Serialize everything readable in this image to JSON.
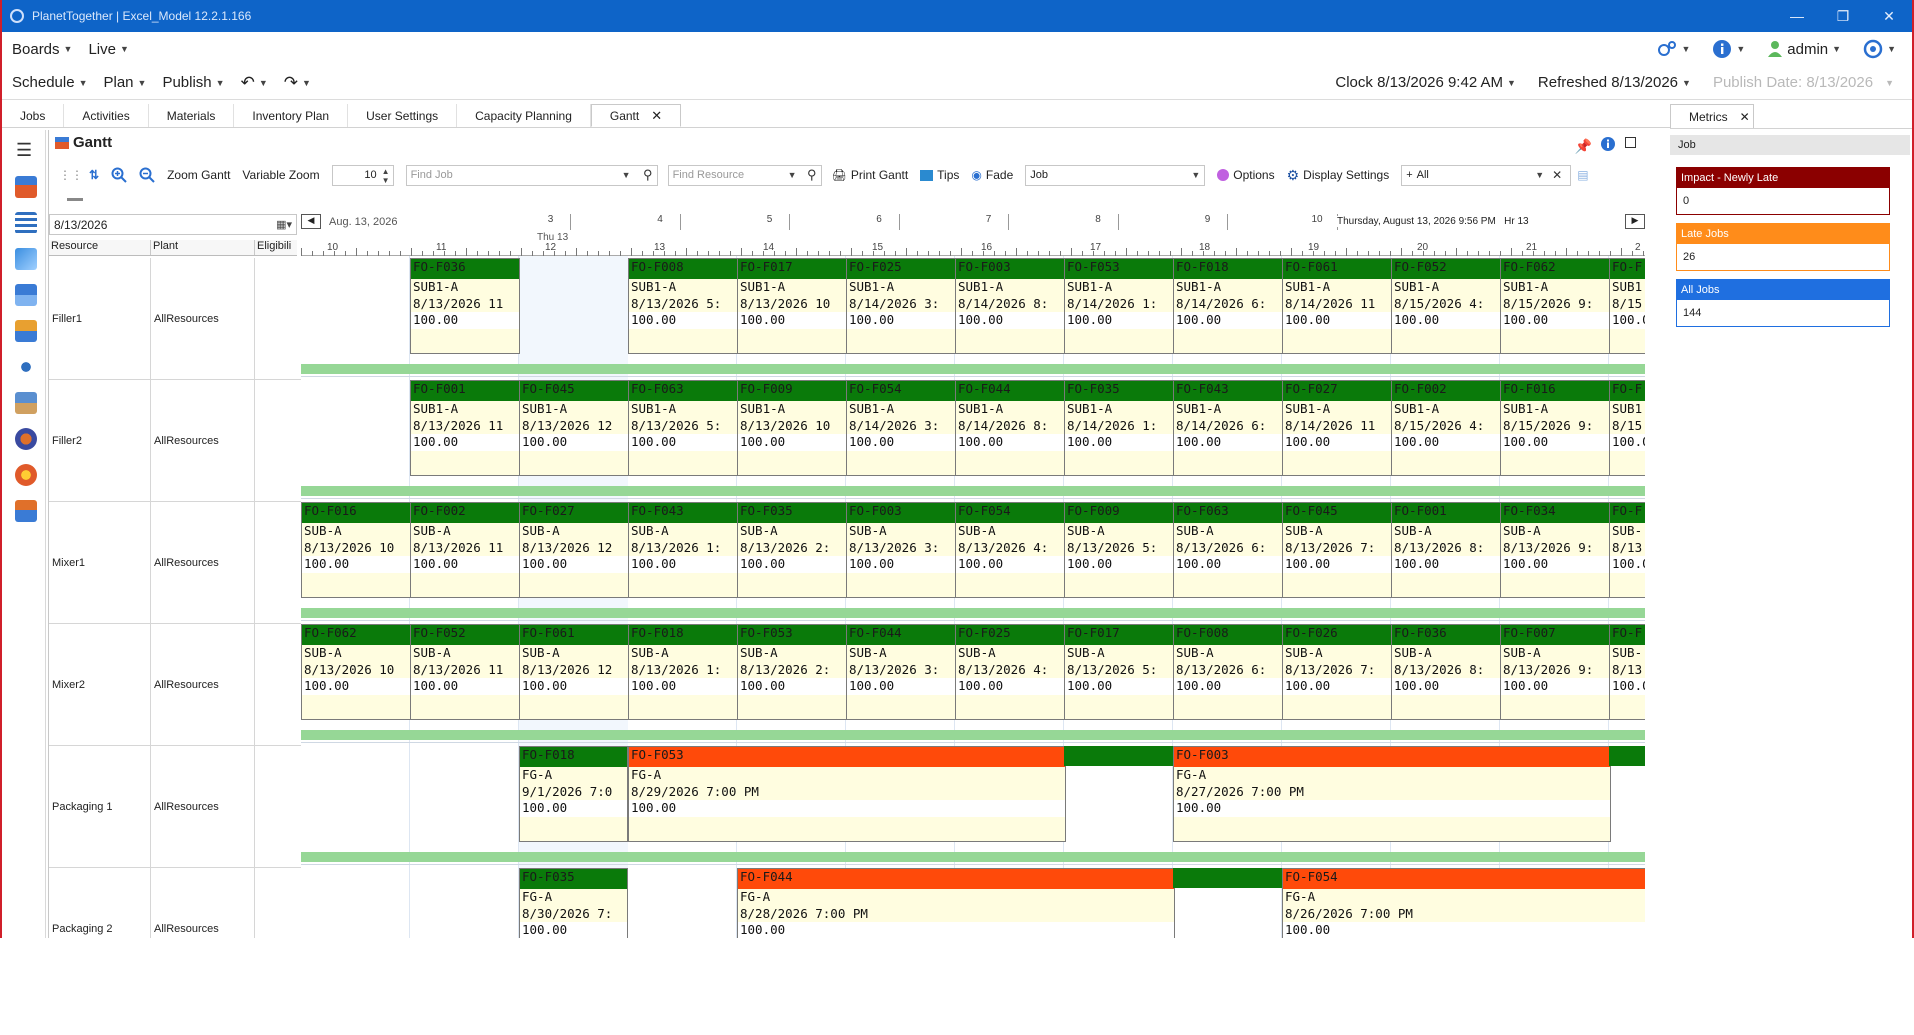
{
  "window": {
    "title": "PlanetTogether  |  Excel_Model  12.2.1.166",
    "controls": [
      "—",
      "❐",
      "✕"
    ]
  },
  "menu1": {
    "items": [
      "Boards",
      "Live"
    ],
    "user": "admin"
  },
  "menu2": {
    "items": [
      "Schedule",
      "Plan",
      "Publish"
    ],
    "clock": "Clock 8/13/2026 9:42 AM",
    "refreshed": "Refreshed 8/13/2026",
    "publish_date": "Publish Date: 8/13/2026"
  },
  "tabs": [
    "Jobs",
    "Activities",
    "Materials",
    "Inventory Plan",
    "User Settings",
    "Capacity Planning",
    "Gantt"
  ],
  "gantt": {
    "title": "Gantt",
    "toolbar": {
      "zoom_gantt": "Zoom Gantt",
      "variable_zoom": "Variable Zoom",
      "zoom_value": "10",
      "find_job_placeholder": "Find Job",
      "find_resource_placeholder": "Find Resource",
      "print_gantt": "Print Gantt",
      "tips": "Tips",
      "fade": "Fade",
      "job_select": "Job",
      "options": "Options",
      "display_settings": "Display Settings",
      "filter_select": "All"
    },
    "date_field": "8/13/2026",
    "columns": [
      "Resource",
      "Plant",
      "Eligibili"
    ],
    "timeline": {
      "date_label": "Aug. 13, 2026",
      "day_label": "Thu 13",
      "mid_ticks": [
        "3",
        "4",
        "5",
        "6",
        "7",
        "8",
        "9",
        "10"
      ],
      "hover_time": "Thursday, August 13, 2026 9:56 PM",
      "hover_hr": "Hr 13",
      "hours": [
        "10",
        "11",
        "12",
        "13",
        "14",
        "15",
        "16",
        "17",
        "18",
        "19",
        "20",
        "21",
        "2"
      ]
    },
    "rows": [
      {
        "resource": "Filler1",
        "plant": "AllResources",
        "blocks": [
          {
            "id": "FO-F036",
            "product": "SUB1-A",
            "date": "8/13/2026  11",
            "qty": "100.00"
          },
          {
            "id": "FO-F008",
            "product": "SUB1-A",
            "date": "8/13/2026  5:",
            "qty": "100.00"
          },
          {
            "id": "FO-F017",
            "product": "SUB1-A",
            "date": "8/13/2026  10",
            "qty": "100.00"
          },
          {
            "id": "FO-F025",
            "product": "SUB1-A",
            "date": "8/14/2026  3:",
            "qty": "100.00"
          },
          {
            "id": "FO-F003",
            "product": "SUB1-A",
            "date": "8/14/2026  8:",
            "qty": "100.00"
          },
          {
            "id": "FO-F053",
            "product": "SUB1-A",
            "date": "8/14/2026  1:",
            "qty": "100.00"
          },
          {
            "id": "FO-F018",
            "product": "SUB1-A",
            "date": "8/14/2026  6:",
            "qty": "100.00"
          },
          {
            "id": "FO-F061",
            "product": "SUB1-A",
            "date": "8/14/2026  11",
            "qty": "100.00"
          },
          {
            "id": "FO-F052",
            "product": "SUB1-A",
            "date": "8/15/2026  4:",
            "qty": "100.00"
          },
          {
            "id": "FO-F062",
            "product": "SUB1-A",
            "date": "8/15/2026  9:",
            "qty": "100.00"
          },
          {
            "id": "FO-F",
            "product": "SUB1",
            "date": "8/15",
            "qty": "100.0"
          }
        ]
      },
      {
        "resource": "Filler2",
        "plant": "AllResources",
        "blocks": [
          {
            "id": "FO-F001",
            "product": "SUB1-A",
            "date": "8/13/2026  11",
            "qty": "100.00"
          },
          {
            "id": "FO-F045",
            "product": "SUB1-A",
            "date": "8/13/2026  12",
            "qty": "100.00"
          },
          {
            "id": "FO-F063",
            "product": "SUB1-A",
            "date": "8/13/2026  5:",
            "qty": "100.00"
          },
          {
            "id": "FO-F009",
            "product": "SUB1-A",
            "date": "8/13/2026  10",
            "qty": "100.00"
          },
          {
            "id": "FO-F054",
            "product": "SUB1-A",
            "date": "8/14/2026  3:",
            "qty": "100.00"
          },
          {
            "id": "FO-F044",
            "product": "SUB1-A",
            "date": "8/14/2026  8:",
            "qty": "100.00"
          },
          {
            "id": "FO-F035",
            "product": "SUB1-A",
            "date": "8/14/2026  1:",
            "qty": "100.00"
          },
          {
            "id": "FO-F043",
            "product": "SUB1-A",
            "date": "8/14/2026  6:",
            "qty": "100.00"
          },
          {
            "id": "FO-F027",
            "product": "SUB1-A",
            "date": "8/14/2026  11",
            "qty": "100.00"
          },
          {
            "id": "FO-F002",
            "product": "SUB1-A",
            "date": "8/15/2026  4:",
            "qty": "100.00"
          },
          {
            "id": "FO-F016",
            "product": "SUB1-A",
            "date": "8/15/2026  9:",
            "qty": "100.00"
          },
          {
            "id": "FO-F",
            "product": "SUB1",
            "date": "8/15",
            "qty": "100.0"
          }
        ]
      },
      {
        "resource": "Mixer1",
        "plant": "AllResources",
        "blocks": [
          {
            "id": "FO-F016",
            "product": "SUB-A",
            "date": "8/13/2026  10",
            "qty": "100.00"
          },
          {
            "id": "FO-F002",
            "product": "SUB-A",
            "date": "8/13/2026  11",
            "qty": "100.00"
          },
          {
            "id": "FO-F027",
            "product": "SUB-A",
            "date": "8/13/2026  12",
            "qty": "100.00"
          },
          {
            "id": "FO-F043",
            "product": "SUB-A",
            "date": "8/13/2026  1:",
            "qty": "100.00"
          },
          {
            "id": "FO-F035",
            "product": "SUB-A",
            "date": "8/13/2026  2:",
            "qty": "100.00"
          },
          {
            "id": "FO-F003",
            "product": "SUB-A",
            "date": "8/13/2026  3:",
            "qty": "100.00"
          },
          {
            "id": "FO-F054",
            "product": "SUB-A",
            "date": "8/13/2026  4:",
            "qty": "100.00"
          },
          {
            "id": "FO-F009",
            "product": "SUB-A",
            "date": "8/13/2026  5:",
            "qty": "100.00"
          },
          {
            "id": "FO-F063",
            "product": "SUB-A",
            "date": "8/13/2026  6:",
            "qty": "100.00"
          },
          {
            "id": "FO-F045",
            "product": "SUB-A",
            "date": "8/13/2026  7:",
            "qty": "100.00"
          },
          {
            "id": "FO-F001",
            "product": "SUB-A",
            "date": "8/13/2026  8:",
            "qty": "100.00"
          },
          {
            "id": "FO-F034",
            "product": "SUB-A",
            "date": "8/13/2026  9:",
            "qty": "100.00"
          },
          {
            "id": "FO-F",
            "product": "SUB-",
            "date": "8/13",
            "qty": "100.0"
          }
        ]
      },
      {
        "resource": "Mixer2",
        "plant": "AllResources",
        "blocks": [
          {
            "id": "FO-F062",
            "product": "SUB-A",
            "date": "8/13/2026  10",
            "qty": "100.00"
          },
          {
            "id": "FO-F052",
            "product": "SUB-A",
            "date": "8/13/2026  11",
            "qty": "100.00"
          },
          {
            "id": "FO-F061",
            "product": "SUB-A",
            "date": "8/13/2026  12",
            "qty": "100.00"
          },
          {
            "id": "FO-F018",
            "product": "SUB-A",
            "date": "8/13/2026  1:",
            "qty": "100.00"
          },
          {
            "id": "FO-F053",
            "product": "SUB-A",
            "date": "8/13/2026  2:",
            "qty": "100.00"
          },
          {
            "id": "FO-F044",
            "product": "SUB-A",
            "date": "8/13/2026  3:",
            "qty": "100.00"
          },
          {
            "id": "FO-F025",
            "product": "SUB-A",
            "date": "8/13/2026  4:",
            "qty": "100.00"
          },
          {
            "id": "FO-F017",
            "product": "SUB-A",
            "date": "8/13/2026  5:",
            "qty": "100.00"
          },
          {
            "id": "FO-F008",
            "product": "SUB-A",
            "date": "8/13/2026  6:",
            "qty": "100.00"
          },
          {
            "id": "FO-F026",
            "product": "SUB-A",
            "date": "8/13/2026  7:",
            "qty": "100.00"
          },
          {
            "id": "FO-F036",
            "product": "SUB-A",
            "date": "8/13/2026  8:",
            "qty": "100.00"
          },
          {
            "id": "FO-F007",
            "product": "SUB-A",
            "date": "8/13/2026  9:",
            "qty": "100.00"
          },
          {
            "id": "FO-F",
            "product": "SUB-",
            "date": "8/13",
            "qty": "100.0"
          }
        ]
      },
      {
        "resource": "Packaging 1",
        "plant": "AllResources",
        "blocks": [
          {
            "id": "FO-F018",
            "product": "FG-A",
            "date": "9/1/2026  7:0",
            "qty": "100.00"
          },
          {
            "id": "FO-F053",
            "product": "FG-A",
            "date": "8/29/2026  7:00 PM",
            "qty": "100.00"
          },
          {
            "id": "FO-F003",
            "product": "FG-A",
            "date": "8/27/2026  7:00 PM",
            "qty": "100.00"
          }
        ]
      },
      {
        "resource": "Packaging 2",
        "plant": "AllResources",
        "blocks": [
          {
            "id": "FO-F035",
            "product": "FG-A",
            "date": "8/30/2026  7:",
            "qty": "100.00"
          },
          {
            "id": "FO-F044",
            "product": "FG-A",
            "date": "8/28/2026  7:00 PM",
            "qty": "100.00"
          },
          {
            "id": "FO-F054",
            "product": "FG-A",
            "date": "8/26/2026  7:00 PM",
            "qty": "100.00"
          }
        ]
      }
    ]
  },
  "metrics": {
    "tab": "Metrics",
    "header": "Job",
    "cards": [
      {
        "label": "Impact - Newly Late",
        "value": "0",
        "color": "#8b0000"
      },
      {
        "label": "Late Jobs",
        "value": "26",
        "color": "#ff8c1a"
      },
      {
        "label": "All Jobs",
        "value": "144",
        "color": "#1f6fe0"
      }
    ]
  },
  "colors": {
    "titlebar": "#0e64c8",
    "block_header_ontime": "#0a7a0a",
    "block_header_late": "#ff4a0a",
    "block_body": "#fffde0",
    "setup_bar": "#96d796"
  }
}
